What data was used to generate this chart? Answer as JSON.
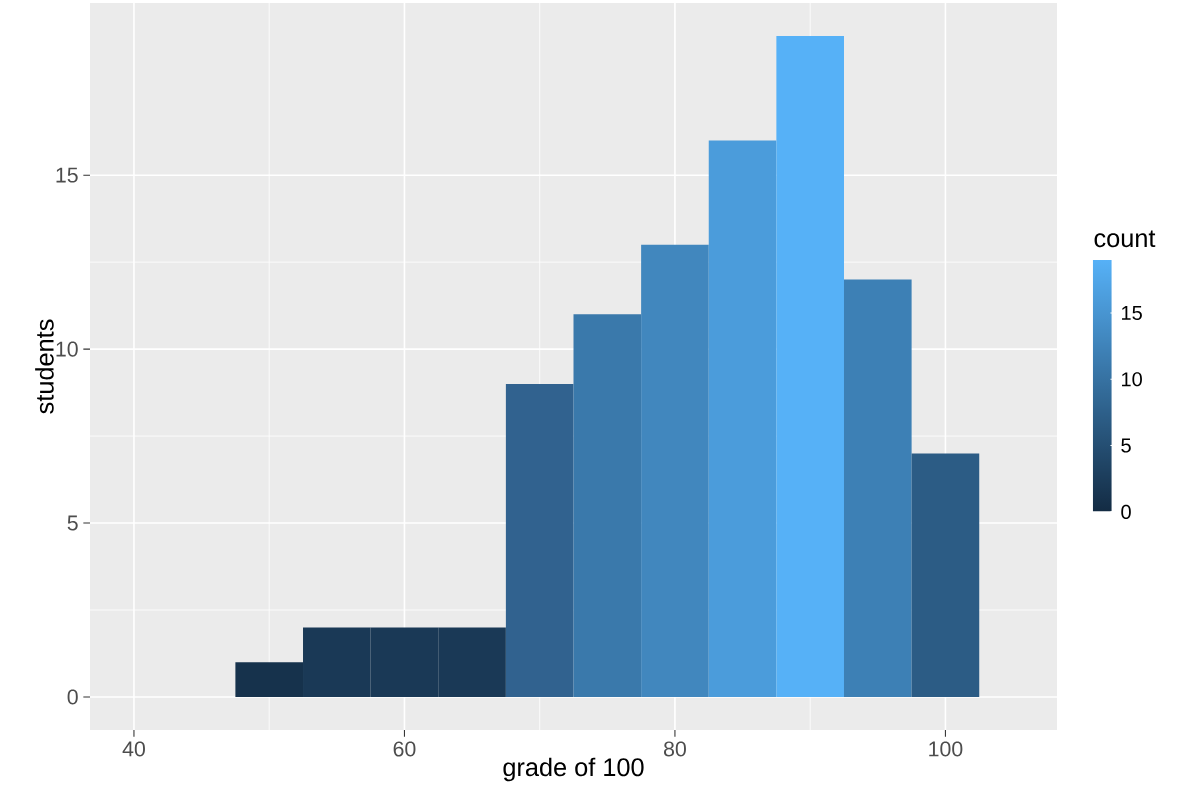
{
  "chart_data": {
    "type": "histogram",
    "xlabel": "grade of 100",
    "ylabel": "students",
    "clabel": "count",
    "bins": [
      42.5,
      47.5,
      52.5,
      57.5,
      62.5,
      67.5,
      72.5,
      77.5,
      82.5,
      87.5,
      92.5,
      97.5,
      102.5
    ],
    "values": [
      0,
      1,
      2,
      2,
      2,
      9,
      11,
      13,
      16,
      19,
      12,
      7
    ],
    "colors": [
      "#132B43",
      "#16324C",
      "#1A3956",
      "#1A3956",
      "#1A3956",
      "#31628F",
      "#3A79AB",
      "#4187BE",
      "#4B9CDB",
      "#56B1F7",
      "#3D80B5",
      "#2C5C85"
    ],
    "xlim": [
      36.75,
      108.25
    ],
    "ylim": [
      -0.95,
      19.95
    ],
    "xticks": [
      40,
      60,
      80,
      100
    ],
    "yticks": [
      0,
      5,
      10,
      15
    ],
    "clim": [
      0,
      19
    ],
    "cticks": [
      0,
      5,
      10,
      15
    ],
    "grid": true
  }
}
